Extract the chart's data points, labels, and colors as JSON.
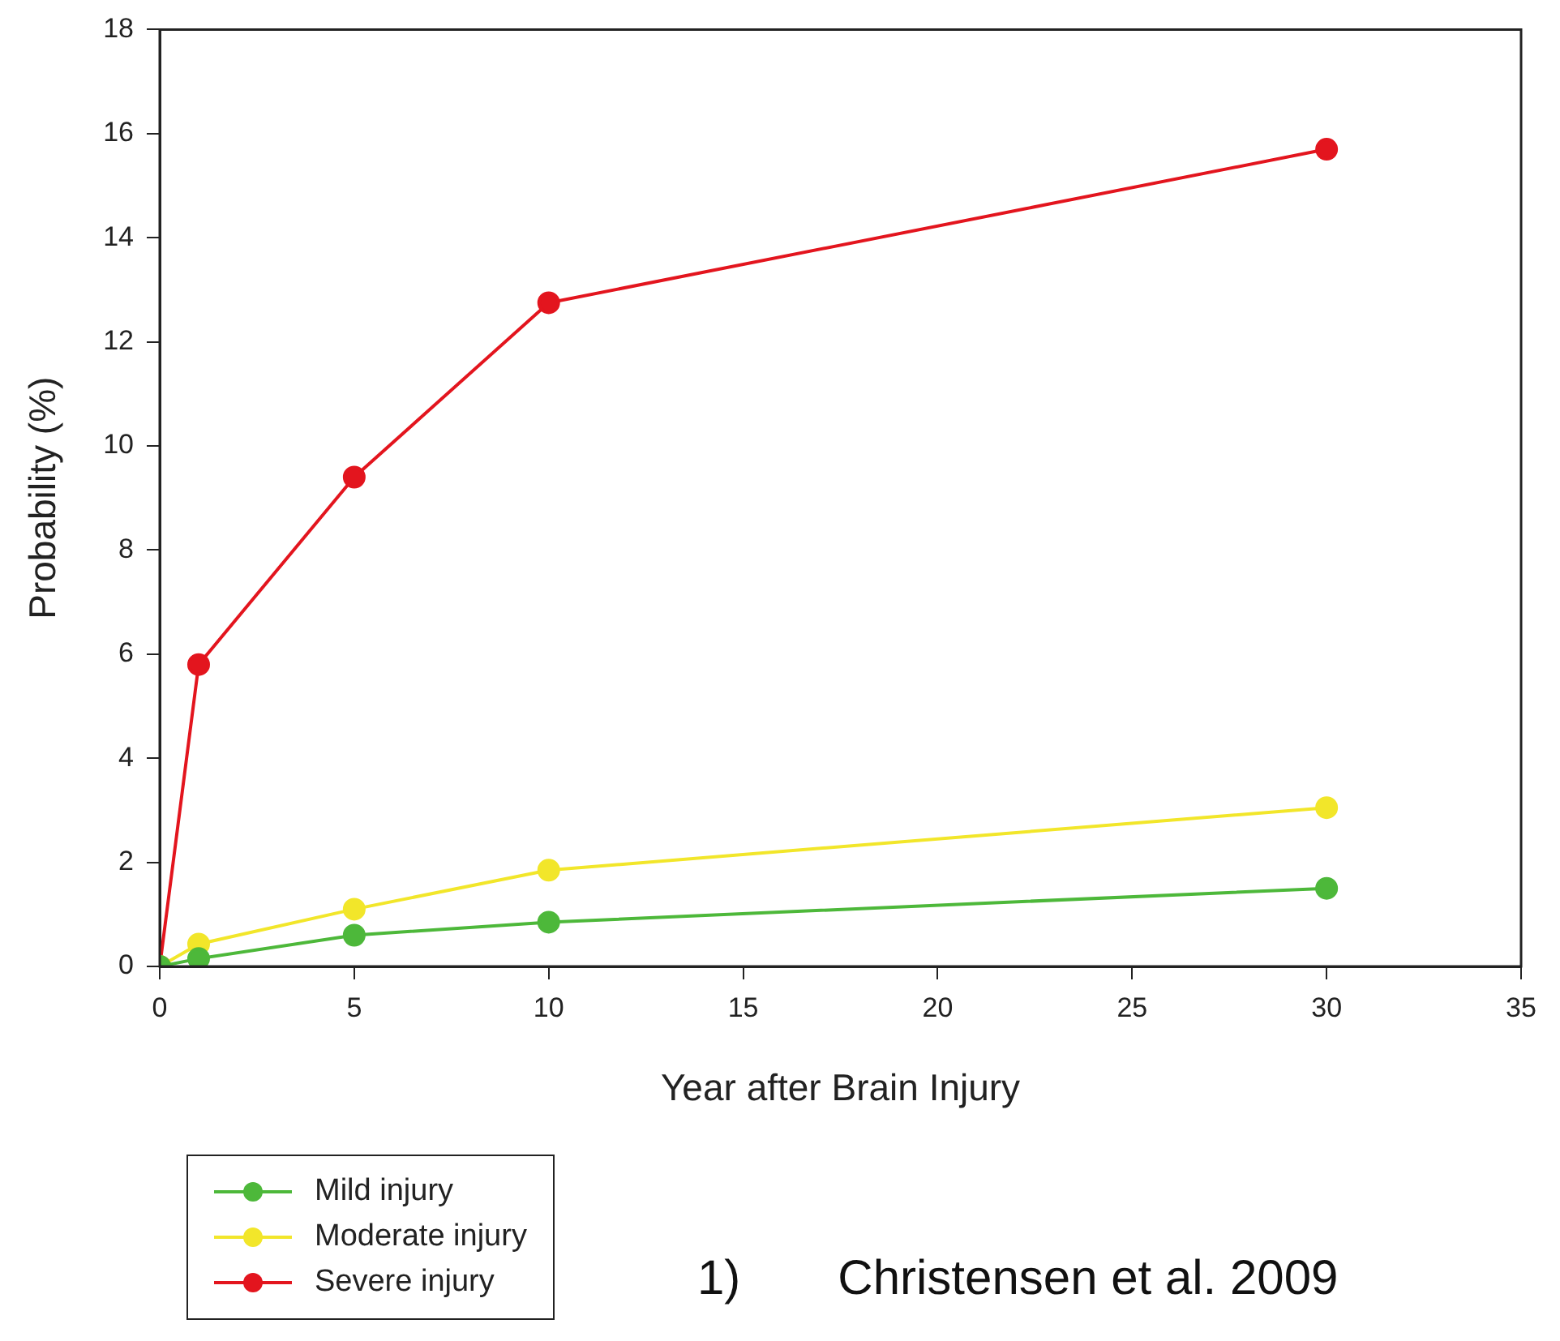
{
  "chart_data": {
    "type": "line",
    "xlabel": "Year after Brain Injury",
    "ylabel": "Probability (%)",
    "x": [
      0,
      1,
      5,
      10,
      30
    ],
    "series": [
      {
        "name": "Mild injury",
        "color": "#4db83a",
        "values": [
          0,
          0.15,
          0.6,
          0.85,
          1.5
        ]
      },
      {
        "name": "Moderate injury",
        "color": "#f2e62a",
        "values": [
          0,
          0.43,
          1.1,
          1.85,
          3.05
        ]
      },
      {
        "name": "Severe injury",
        "color": "#e3151e",
        "values": [
          0,
          5.8,
          9.4,
          12.75,
          15.7
        ]
      }
    ],
    "xlim": [
      0,
      35
    ],
    "xticks": [
      0,
      5,
      10,
      15,
      20,
      25,
      30,
      35
    ],
    "ylim": [
      0,
      18
    ],
    "yticks": [
      0,
      2,
      4,
      6,
      8,
      10,
      12,
      14,
      16,
      18
    ],
    "grid": false,
    "legend": "bottom left",
    "marker": "circle",
    "line_style": "solid",
    "annotations": [
      "1)  Christensen et al. 2009"
    ]
  }
}
